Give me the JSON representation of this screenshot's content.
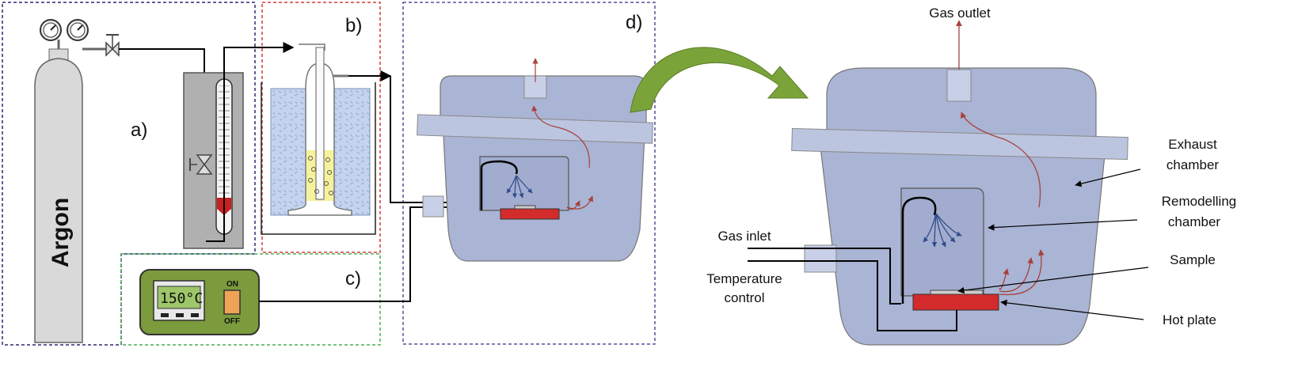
{
  "labels": {
    "panel_a": "a)",
    "panel_b": "b)",
    "panel_c": "c)",
    "panel_d": "d)",
    "cylinder": "Argon",
    "display": "150°C",
    "switch_on": "ON",
    "switch_off": "OFF",
    "gas_outlet": "Gas outlet",
    "exhaust_1": "Exhaust",
    "exhaust_2": "chamber",
    "remodelling_1": "Remodelling",
    "remodelling_2": "chamber",
    "sample": "Sample",
    "hot_plate": "Hot plate",
    "gas_inlet": "Gas inlet",
    "temperature_1": "Temperature",
    "temperature_2": "control"
  },
  "colors": {
    "panel_a_border": "#2b2b6e",
    "panel_b_border": "#d43b3b",
    "panel_c_border": "#4caf50",
    "panel_d_border": "#5a4e9a",
    "chamber_fill": "#a9b3d4",
    "lid_fill": "#bcc5e0",
    "hot_plate": "#d32b2b",
    "arrow_green": "#7aa33a",
    "heat_arrows": "#b0524a",
    "flow_arrows": "#2f4b8a",
    "controller_green": "#7b9b3c",
    "cylinder_fill": "#d9d9d9",
    "bath_fill": "#b9cbe8",
    "liquid_fill": "#f5f29a"
  }
}
